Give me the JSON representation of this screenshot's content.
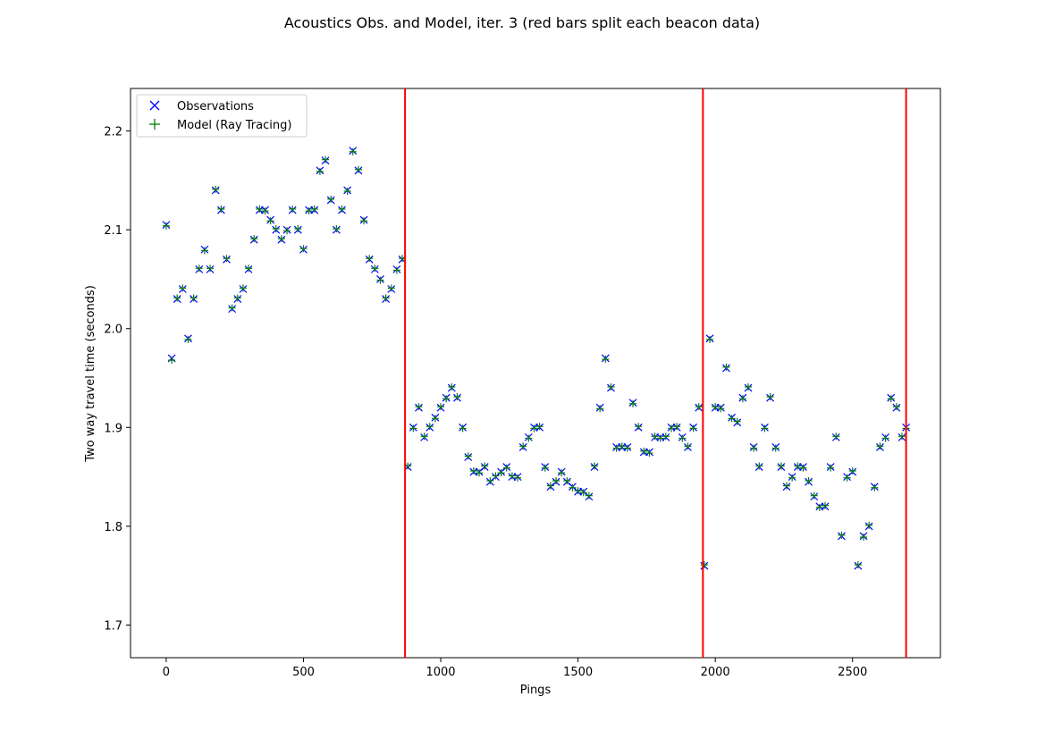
{
  "chart_data": {
    "type": "scatter",
    "title": "Acoustics Obs. and Model, iter. 3 (red bars split each beacon data)",
    "xlabel": "Pings",
    "ylabel": "Two way travel time (seconds)",
    "xlim": [
      -130,
      2820
    ],
    "ylim": [
      1.667,
      2.243
    ],
    "xticks": [
      0,
      500,
      1000,
      1500,
      2000,
      2500
    ],
    "yticks": [
      1.7,
      1.8,
      1.9,
      2.0,
      2.1,
      2.2
    ],
    "ytick_labels": [
      "1.7",
      "1.8",
      "1.9",
      "2.0",
      "2.1",
      "2.2"
    ],
    "grid": false,
    "legend_position": "top-left",
    "split_lines": [
      870,
      1955,
      2695
    ],
    "split_line_color": "#ff0000",
    "series": [
      {
        "name": "Observations",
        "marker": "x",
        "color": "#0000ff"
      },
      {
        "name": "Model (Ray Tracing)",
        "marker": "+",
        "color": "#008000"
      }
    ],
    "x": [
      0,
      20,
      40,
      60,
      80,
      100,
      120,
      140,
      160,
      180,
      200,
      220,
      240,
      260,
      280,
      300,
      320,
      340,
      360,
      380,
      400,
      420,
      440,
      460,
      480,
      500,
      520,
      540,
      560,
      580,
      600,
      620,
      640,
      660,
      680,
      700,
      720,
      740,
      760,
      780,
      800,
      820,
      840,
      860,
      880,
      900,
      920,
      940,
      960,
      980,
      1000,
      1020,
      1040,
      1060,
      1080,
      1100,
      1120,
      1140,
      1160,
      1180,
      1200,
      1220,
      1240,
      1260,
      1280,
      1300,
      1320,
      1340,
      1360,
      1380,
      1400,
      1420,
      1440,
      1460,
      1480,
      1500,
      1520,
      1540,
      1560,
      1580,
      1600,
      1620,
      1640,
      1660,
      1680,
      1700,
      1720,
      1740,
      1760,
      1780,
      1800,
      1820,
      1840,
      1860,
      1880,
      1900,
      1920,
      1940,
      1960,
      1980,
      2000,
      2020,
      2040,
      2060,
      2080,
      2100,
      2120,
      2140,
      2160,
      2180,
      2200,
      2220,
      2240,
      2260,
      2280,
      2300,
      2320,
      2340,
      2360,
      2380,
      2400,
      2420,
      2440,
      2460,
      2480,
      2500,
      2520,
      2540,
      2560,
      2580,
      2600,
      2620,
      2640,
      2660,
      2680,
      2695
    ],
    "observations": [
      2.105,
      1.97,
      2.03,
      2.04,
      1.99,
      2.03,
      2.06,
      2.08,
      2.06,
      2.14,
      2.12,
      2.07,
      2.02,
      2.03,
      2.04,
      2.06,
      2.09,
      2.12,
      2.12,
      2.11,
      2.1,
      2.09,
      2.1,
      2.12,
      2.1,
      2.08,
      2.12,
      2.12,
      2.16,
      2.17,
      2.13,
      2.1,
      2.12,
      2.14,
      2.18,
      2.16,
      2.11,
      2.07,
      2.06,
      2.05,
      2.03,
      2.04,
      2.06,
      2.07,
      1.86,
      1.9,
      1.92,
      1.89,
      1.9,
      1.91,
      1.92,
      1.93,
      1.94,
      1.93,
      1.9,
      1.87,
      1.855,
      1.855,
      1.86,
      1.845,
      1.85,
      1.855,
      1.86,
      1.85,
      1.85,
      1.88,
      1.89,
      1.9,
      1.9,
      1.86,
      1.84,
      1.845,
      1.855,
      1.845,
      1.84,
      1.835,
      1.835,
      1.83,
      1.86,
      1.92,
      1.97,
      1.94,
      1.88,
      1.88,
      1.88,
      1.925,
      1.9,
      1.875,
      1.875,
      1.89,
      1.89,
      1.89,
      1.9,
      1.9,
      1.89,
      1.88,
      1.9,
      1.92,
      1.76,
      1.99,
      1.92,
      1.92,
      1.96,
      1.91,
      1.905,
      1.93,
      1.94,
      1.88,
      1.86,
      1.9,
      1.93,
      1.88,
      1.86,
      1.84,
      1.85,
      1.86,
      1.86,
      1.845,
      1.83,
      1.82,
      1.82,
      1.86,
      1.89,
      1.79,
      1.85,
      1.855,
      1.76,
      1.79,
      1.8,
      1.84,
      1.88,
      1.89,
      1.93,
      1.92,
      1.89,
      1.9,
      1.78
    ],
    "model": [
      2.104,
      1.968,
      2.031,
      2.041,
      1.989,
      2.031,
      2.061,
      2.079,
      2.061,
      2.141,
      2.121,
      2.071,
      2.021,
      2.031,
      2.041,
      2.061,
      2.091,
      2.121,
      2.119,
      2.109,
      2.101,
      2.091,
      2.099,
      2.121,
      2.101,
      2.081,
      2.119,
      2.121,
      2.159,
      2.171,
      2.131,
      2.101,
      2.121,
      2.139,
      2.179,
      2.161,
      2.109,
      2.071,
      2.061,
      2.049,
      2.031,
      2.041,
      2.059,
      2.071,
      1.861,
      1.899,
      1.921,
      1.891,
      1.901,
      1.909,
      1.921,
      1.929,
      1.941,
      1.931,
      1.899,
      1.871,
      1.856,
      1.854,
      1.861,
      1.846,
      1.851,
      1.854,
      1.859,
      1.851,
      1.849,
      1.881,
      1.889,
      1.899,
      1.901,
      1.859,
      1.841,
      1.846,
      1.854,
      1.846,
      1.839,
      1.836,
      1.834,
      1.831,
      1.861,
      1.919,
      1.969,
      1.941,
      1.879,
      1.881,
      1.879,
      1.924,
      1.901,
      1.876,
      1.874,
      1.891,
      1.889,
      1.891,
      1.899,
      1.901,
      1.889,
      1.881,
      1.899,
      1.921,
      1.761,
      1.989,
      1.921,
      1.919,
      1.961,
      1.909,
      1.906,
      1.929,
      1.941,
      1.879,
      1.861,
      1.899,
      1.931,
      1.879,
      1.861,
      1.841,
      1.849,
      1.861,
      1.859,
      1.846,
      1.831,
      1.819,
      1.821,
      1.859,
      1.891,
      1.791,
      1.849,
      1.856,
      1.761,
      1.789,
      1.801,
      1.839,
      1.881,
      1.889,
      1.929,
      1.921,
      1.891,
      1.899,
      1.781
    ]
  }
}
